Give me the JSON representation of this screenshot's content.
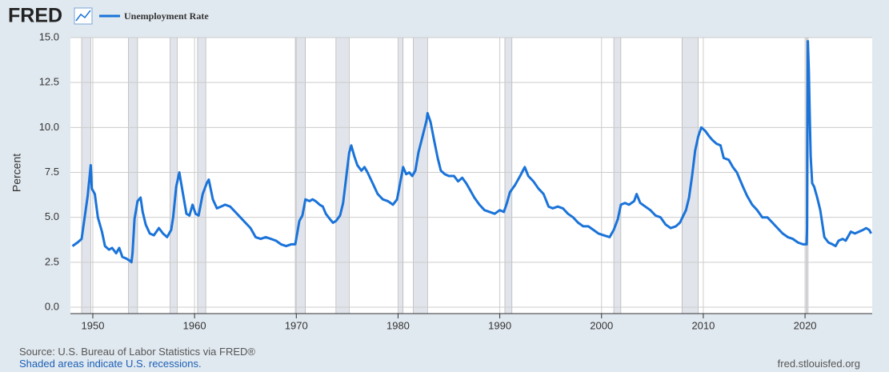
{
  "logo": "FRED",
  "footer": {
    "source": "Source: U.S. Bureau of Labor Statistics via FRED®",
    "note": "Shaded areas indicate U.S. recessions.",
    "site": "fred.stlouisfed.org"
  },
  "chart_data": {
    "type": "line",
    "y_label": "Percent",
    "x": [
      1948.0,
      1948.5,
      1948.9,
      1949.2,
      1949.5,
      1949.8,
      1949.9,
      1950.2,
      1950.5,
      1950.9,
      1951.2,
      1951.6,
      1951.9,
      1952.3,
      1952.6,
      1952.9,
      1953.3,
      1953.6,
      1953.8,
      1953.9,
      1954.1,
      1954.4,
      1954.7,
      1954.9,
      1955.2,
      1955.6,
      1956.0,
      1956.5,
      1956.9,
      1957.3,
      1957.7,
      1957.9,
      1958.2,
      1958.5,
      1958.9,
      1959.2,
      1959.5,
      1959.8,
      1960.1,
      1960.4,
      1960.8,
      1961.2,
      1961.4,
      1961.8,
      1962.2,
      1962.6,
      1963.0,
      1963.5,
      1964.0,
      1964.5,
      1965.0,
      1965.5,
      1966.0,
      1966.5,
      1967.0,
      1967.5,
      1968.0,
      1968.5,
      1969.0,
      1969.5,
      1969.9,
      1970.3,
      1970.6,
      1970.9,
      1971.3,
      1971.6,
      1971.9,
      1972.3,
      1972.6,
      1972.9,
      1973.3,
      1973.6,
      1973.9,
      1974.3,
      1974.6,
      1974.9,
      1975.2,
      1975.4,
      1975.7,
      1976.0,
      1976.4,
      1976.7,
      1977.0,
      1977.5,
      1978.0,
      1978.5,
      1979.0,
      1979.5,
      1979.9,
      1980.2,
      1980.5,
      1980.8,
      1981.1,
      1981.4,
      1981.7,
      1982.0,
      1982.4,
      1982.8,
      1982.9,
      1983.2,
      1983.5,
      1983.9,
      1984.2,
      1984.6,
      1985.0,
      1985.5,
      1985.9,
      1986.3,
      1986.7,
      1987.0,
      1987.5,
      1988.0,
      1988.5,
      1989.0,
      1989.5,
      1990.0,
      1990.4,
      1990.7,
      1991.0,
      1991.5,
      1992.0,
      1992.45,
      1992.8,
      1993.3,
      1993.8,
      1994.3,
      1994.8,
      1995.2,
      1995.7,
      1996.2,
      1996.7,
      1997.2,
      1997.7,
      1998.2,
      1998.7,
      1999.2,
      1999.7,
      2000.2,
      2000.8,
      2001.2,
      2001.6,
      2001.9,
      2002.3,
      2002.7,
      2003.2,
      2003.45,
      2003.8,
      2004.3,
      2004.8,
      2005.3,
      2005.8,
      2006.3,
      2006.8,
      2007.3,
      2007.7,
      2007.95,
      2008.3,
      2008.6,
      2008.9,
      2009.2,
      2009.5,
      2009.8,
      2010.2,
      2010.6,
      2010.9,
      2011.3,
      2011.7,
      2012.0,
      2012.5,
      2012.9,
      2013.3,
      2013.9,
      2014.3,
      2014.8,
      2015.3,
      2015.8,
      2016.3,
      2016.8,
      2017.3,
      2017.8,
      2018.3,
      2018.8,
      2019.3,
      2019.8,
      2020.15,
      2020.2,
      2020.28,
      2020.37,
      2020.45,
      2020.55,
      2020.7,
      2020.9,
      2021.2,
      2021.5,
      2021.9,
      2022.3,
      2022.7,
      2023.0,
      2023.3,
      2023.7,
      2024.0,
      2024.5,
      2024.9,
      2025.3,
      2025.7,
      2026.0,
      2026.3,
      2026.5
    ],
    "series": [
      {
        "name": "Unemployment Rate",
        "color": "#1a73d9",
        "values": [
          3.4,
          3.6,
          3.8,
          5.0,
          6.2,
          7.9,
          6.6,
          6.3,
          5.0,
          4.2,
          3.4,
          3.2,
          3.3,
          3.0,
          3.3,
          2.8,
          2.7,
          2.6,
          2.5,
          3.0,
          4.9,
          5.9,
          6.1,
          5.3,
          4.6,
          4.1,
          4.0,
          4.4,
          4.1,
          3.9,
          4.3,
          5.0,
          6.7,
          7.5,
          6.2,
          5.2,
          5.1,
          5.7,
          5.2,
          5.1,
          6.3,
          6.9,
          7.1,
          6.0,
          5.5,
          5.6,
          5.7,
          5.6,
          5.3,
          5.0,
          4.7,
          4.4,
          3.9,
          3.8,
          3.9,
          3.8,
          3.7,
          3.5,
          3.4,
          3.5,
          3.5,
          4.8,
          5.1,
          6.0,
          5.9,
          6.0,
          5.9,
          5.7,
          5.6,
          5.2,
          4.9,
          4.7,
          4.8,
          5.1,
          5.8,
          7.2,
          8.6,
          9.0,
          8.4,
          7.9,
          7.6,
          7.8,
          7.5,
          6.9,
          6.3,
          6.0,
          5.9,
          5.7,
          6.0,
          6.9,
          7.8,
          7.4,
          7.5,
          7.3,
          7.6,
          8.6,
          9.5,
          10.4,
          10.8,
          10.3,
          9.4,
          8.3,
          7.6,
          7.4,
          7.3,
          7.3,
          7.0,
          7.2,
          6.9,
          6.6,
          6.1,
          5.7,
          5.4,
          5.3,
          5.2,
          5.4,
          5.3,
          5.8,
          6.4,
          6.8,
          7.3,
          7.8,
          7.3,
          7.0,
          6.6,
          6.3,
          5.6,
          5.5,
          5.6,
          5.5,
          5.2,
          5.0,
          4.7,
          4.5,
          4.5,
          4.3,
          4.1,
          4.0,
          3.9,
          4.3,
          4.9,
          5.7,
          5.8,
          5.7,
          5.9,
          6.3,
          5.8,
          5.6,
          5.4,
          5.1,
          5.0,
          4.6,
          4.4,
          4.5,
          4.7,
          5.0,
          5.4,
          6.1,
          7.3,
          8.7,
          9.5,
          10.0,
          9.8,
          9.5,
          9.3,
          9.1,
          9.0,
          8.3,
          8.2,
          7.8,
          7.5,
          6.7,
          6.2,
          5.7,
          5.4,
          5.0,
          5.0,
          4.7,
          4.4,
          4.1,
          3.9,
          3.8,
          3.6,
          3.5,
          3.5,
          4.4,
          14.8,
          13.2,
          11.0,
          8.4,
          6.9,
          6.7,
          6.1,
          5.4,
          3.9,
          3.6,
          3.5,
          3.4,
          3.7,
          3.8,
          3.7,
          4.2,
          4.1,
          4.2,
          4.3,
          4.4,
          4.3,
          4.1
        ]
      }
    ],
    "recessions": [
      [
        1948.9,
        1949.8
      ],
      [
        1953.5,
        1954.4
      ],
      [
        1957.6,
        1958.3
      ],
      [
        1960.3,
        1961.1
      ],
      [
        1969.9,
        1970.9
      ],
      [
        1973.9,
        1975.2
      ],
      [
        1980.0,
        1980.5
      ],
      [
        1981.5,
        1982.9
      ],
      [
        1990.5,
        1991.2
      ],
      [
        2001.2,
        2001.9
      ],
      [
        2007.9,
        2009.5
      ],
      [
        2020.1,
        2020.3
      ]
    ],
    "recession_color": "#e1e4ea",
    "xlim": [
      1947.8,
      2026.6
    ],
    "xticks": [
      1950,
      1960,
      1970,
      1980,
      1990,
      2000,
      2010,
      2020
    ],
    "ylim": [
      0,
      15
    ],
    "yticks": [
      {
        "value": 0,
        "label": "0.0"
      },
      {
        "value": 2.5,
        "label": "2.5"
      },
      {
        "value": 5,
        "label": "5.0"
      },
      {
        "value": 7.5,
        "label": "7.5"
      },
      {
        "value": 10,
        "label": "10.0"
      },
      {
        "value": 12.5,
        "label": "12.5"
      },
      {
        "value": 15,
        "label": "15.0"
      }
    ],
    "grid": true
  }
}
